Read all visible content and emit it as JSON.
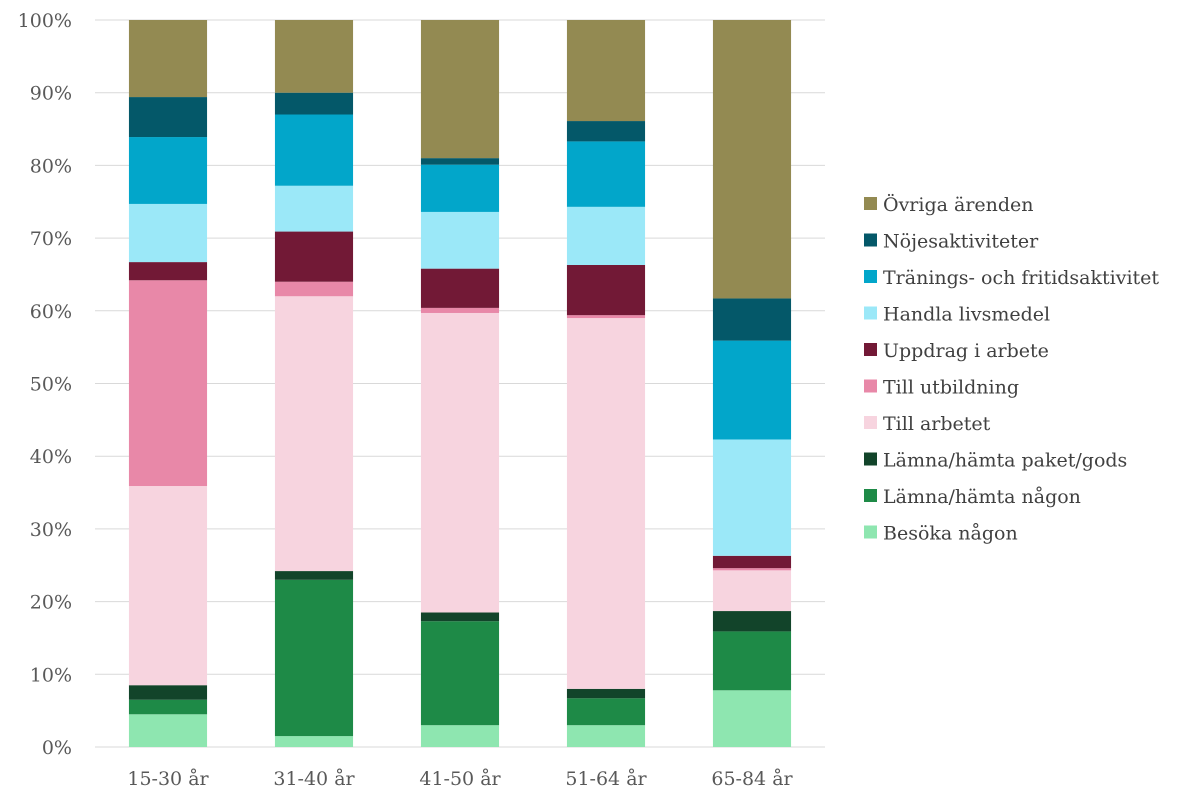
{
  "chart_data": {
    "type": "bar",
    "stacked": true,
    "categories": [
      "15-30 år",
      "31-40 år",
      "41-50 år",
      "51-64 år",
      "65-84 år"
    ],
    "ylim": [
      0,
      100
    ],
    "y_ticks": [
      "0%",
      "10%",
      "20%",
      "30%",
      "40%",
      "50%",
      "60%",
      "70%",
      "80%",
      "90%",
      "100%"
    ],
    "grid": true,
    "legend_position": "right",
    "series": [
      {
        "name": "Besöka någon",
        "color": "#8ee6b0",
        "values": [
          4.5,
          1.5,
          3.0,
          3.0,
          7.8
        ]
      },
      {
        "name": "Lämna/hämta någon",
        "color": "#1e8a47",
        "values": [
          2.0,
          21.5,
          14.3,
          3.7,
          8.1
        ]
      },
      {
        "name": "Lämna/hämta paket/gods",
        "color": "#12442a",
        "values": [
          2.0,
          1.2,
          1.2,
          1.3,
          2.8
        ]
      },
      {
        "name": "Till arbetet",
        "color": "#f7d4df",
        "values": [
          27.4,
          37.8,
          41.2,
          51.0,
          5.6
        ]
      },
      {
        "name": "Till utbildning",
        "color": "#e888a8",
        "values": [
          28.3,
          2.0,
          0.7,
          0.4,
          0.3
        ]
      },
      {
        "name": "Uppdrag i arbete",
        "color": "#721936",
        "values": [
          2.5,
          6.9,
          5.4,
          6.9,
          1.7
        ]
      },
      {
        "name": "Handla livsmedel",
        "color": "#9be8f8",
        "values": [
          8.0,
          6.3,
          7.8,
          8.0,
          16.0
        ]
      },
      {
        "name": "Tränings- och fritidsaktivitet",
        "color": "#02a6ca",
        "values": [
          9.2,
          9.8,
          6.5,
          9.0,
          13.6
        ]
      },
      {
        "name": "Nöjesaktiviteter",
        "color": "#045869",
        "values": [
          5.5,
          3.0,
          0.9,
          2.8,
          5.8
        ]
      },
      {
        "name": "Övriga ärenden",
        "color": "#938a52",
        "values": [
          10.6,
          10.0,
          19.0,
          13.9,
          38.3
        ]
      }
    ]
  }
}
